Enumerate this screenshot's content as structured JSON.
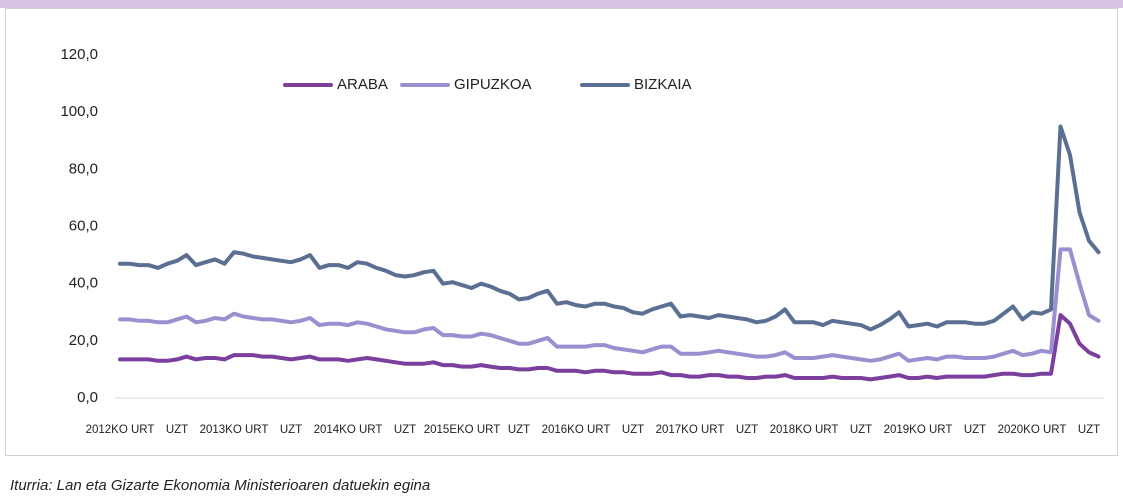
{
  "chart_data": {
    "type": "line",
    "source": "Iturria: Lan eta Gizarte Ekonomia Ministerioaren datuekin egina",
    "categories": [
      "2012KO URT",
      null,
      null,
      null,
      null,
      null,
      "UZT",
      null,
      null,
      null,
      null,
      null,
      "2013KO URT",
      null,
      null,
      null,
      null,
      null,
      "UZT",
      null,
      null,
      null,
      null,
      null,
      "2014KO URT",
      null,
      null,
      null,
      null,
      null,
      "UZT",
      null,
      null,
      null,
      null,
      null,
      "2015EKO URT",
      null,
      null,
      null,
      null,
      null,
      "UZT",
      null,
      null,
      null,
      null,
      null,
      "2016KO URT",
      null,
      null,
      null,
      null,
      null,
      "UZT",
      null,
      null,
      null,
      null,
      null,
      "2017KO URT",
      null,
      null,
      null,
      null,
      null,
      "UZT",
      null,
      null,
      null,
      null,
      null,
      "2018KO URT",
      null,
      null,
      null,
      null,
      null,
      "UZT",
      null,
      null,
      null,
      null,
      null,
      "2019KO URT",
      null,
      null,
      null,
      null,
      null,
      "UZT",
      null,
      null,
      null,
      null,
      null,
      "2020KO URT",
      null,
      null,
      null,
      null,
      null,
      "UZT",
      null
    ],
    "series": [
      {
        "name": "ARABA",
        "color": "#7b3f9e",
        "values": [
          13.5,
          13.5,
          13.5,
          13.5,
          13,
          13,
          13.5,
          14.5,
          13.5,
          14,
          14,
          13.5,
          15,
          15,
          15,
          14.5,
          14.5,
          14,
          13.5,
          14,
          14.5,
          13.5,
          13.5,
          13.5,
          13,
          13.5,
          14,
          13.5,
          13,
          12.5,
          12,
          12,
          12,
          12.5,
          11.5,
          11.5,
          11,
          11,
          11.5,
          11,
          10.5,
          10.5,
          10,
          10,
          10.5,
          10.5,
          9.5,
          9.5,
          9.5,
          9,
          9.5,
          9.5,
          9,
          9,
          8.5,
          8.5,
          8.5,
          9,
          8,
          8,
          7.5,
          7.5,
          8,
          8,
          7.5,
          7.5,
          7,
          7,
          7.5,
          7.5,
          8,
          7,
          7,
          7,
          7,
          7.5,
          7,
          7,
          7,
          6.5,
          7,
          7.5,
          8,
          7,
          7,
          7.5,
          7,
          7.5,
          7.5,
          7.5,
          7.5,
          7.5,
          8,
          8.5,
          8.5,
          8,
          8,
          8.5,
          8.5,
          29,
          26,
          19,
          16,
          14.5
        ]
      },
      {
        "name": "GIPUZKOA",
        "color": "#9b8fd0",
        "values": [
          27.5,
          27.5,
          27,
          27,
          26.5,
          26.5,
          27.5,
          28.5,
          26.5,
          27,
          28,
          27.5,
          29.5,
          28.5,
          28,
          27.5,
          27.5,
          27,
          26.5,
          27,
          28,
          25.5,
          26,
          26,
          25.5,
          26.5,
          26,
          25,
          24,
          23.5,
          23,
          23,
          24,
          24.5,
          22,
          22,
          21.5,
          21.5,
          22.5,
          22,
          21,
          20,
          19,
          19,
          20,
          21,
          18,
          18,
          18,
          18,
          18.5,
          18.5,
          17.5,
          17,
          16.5,
          16,
          17,
          18,
          18,
          15.5,
          15.5,
          15.5,
          16,
          16.5,
          16,
          15.5,
          15,
          14.5,
          14.5,
          15,
          16,
          14,
          14,
          14,
          14.5,
          15,
          14.5,
          14,
          13.5,
          13,
          13.5,
          14.5,
          15.5,
          13,
          13.5,
          14,
          13.5,
          14.5,
          14.5,
          14,
          14,
          14,
          14.5,
          15.5,
          16.5,
          15,
          15.5,
          16.5,
          16,
          52,
          52,
          40,
          29,
          27
        ]
      },
      {
        "name": "BIZKAIA",
        "color": "#5a6f91",
        "values": [
          47,
          47,
          46.5,
          46.5,
          45.5,
          47,
          48,
          50,
          46.5,
          47.5,
          48.5,
          47,
          51,
          50.5,
          49.5,
          49,
          48.5,
          48,
          47.5,
          48.5,
          50,
          45.5,
          46.5,
          46.5,
          45.5,
          47.5,
          47,
          45.5,
          44.5,
          43,
          42.5,
          43,
          44,
          44.5,
          40,
          40.5,
          39.5,
          38.5,
          40,
          39,
          37.5,
          36.5,
          34.5,
          35,
          36.5,
          37.5,
          33,
          33.5,
          32.5,
          32,
          33,
          33,
          32,
          31.5,
          30,
          29.5,
          31,
          32,
          33,
          28.5,
          29,
          28.5,
          28,
          29,
          28.5,
          28,
          27.5,
          26.5,
          27,
          28.5,
          31,
          26.5,
          26.5,
          26.5,
          25.5,
          27,
          26.5,
          26,
          25.5,
          24,
          25.5,
          27.5,
          30,
          25,
          25.5,
          26,
          25,
          26.5,
          26.5,
          26.5,
          26,
          26,
          27,
          29.5,
          32,
          27.5,
          30,
          29.5,
          31,
          95,
          85,
          65,
          55,
          51
        ]
      }
    ],
    "ylim": [
      0,
      120
    ],
    "yticks": [
      {
        "value": 0,
        "label": "0,0"
      },
      {
        "value": 20,
        "label": "20,0"
      },
      {
        "value": 40,
        "label": "40,0"
      },
      {
        "value": 60,
        "label": "60,0"
      },
      {
        "value": 80,
        "label": "80,0"
      },
      {
        "value": 100,
        "label": "100,0"
      },
      {
        "value": 120,
        "label": "120,0"
      }
    ],
    "grid": false,
    "legend": "top"
  }
}
